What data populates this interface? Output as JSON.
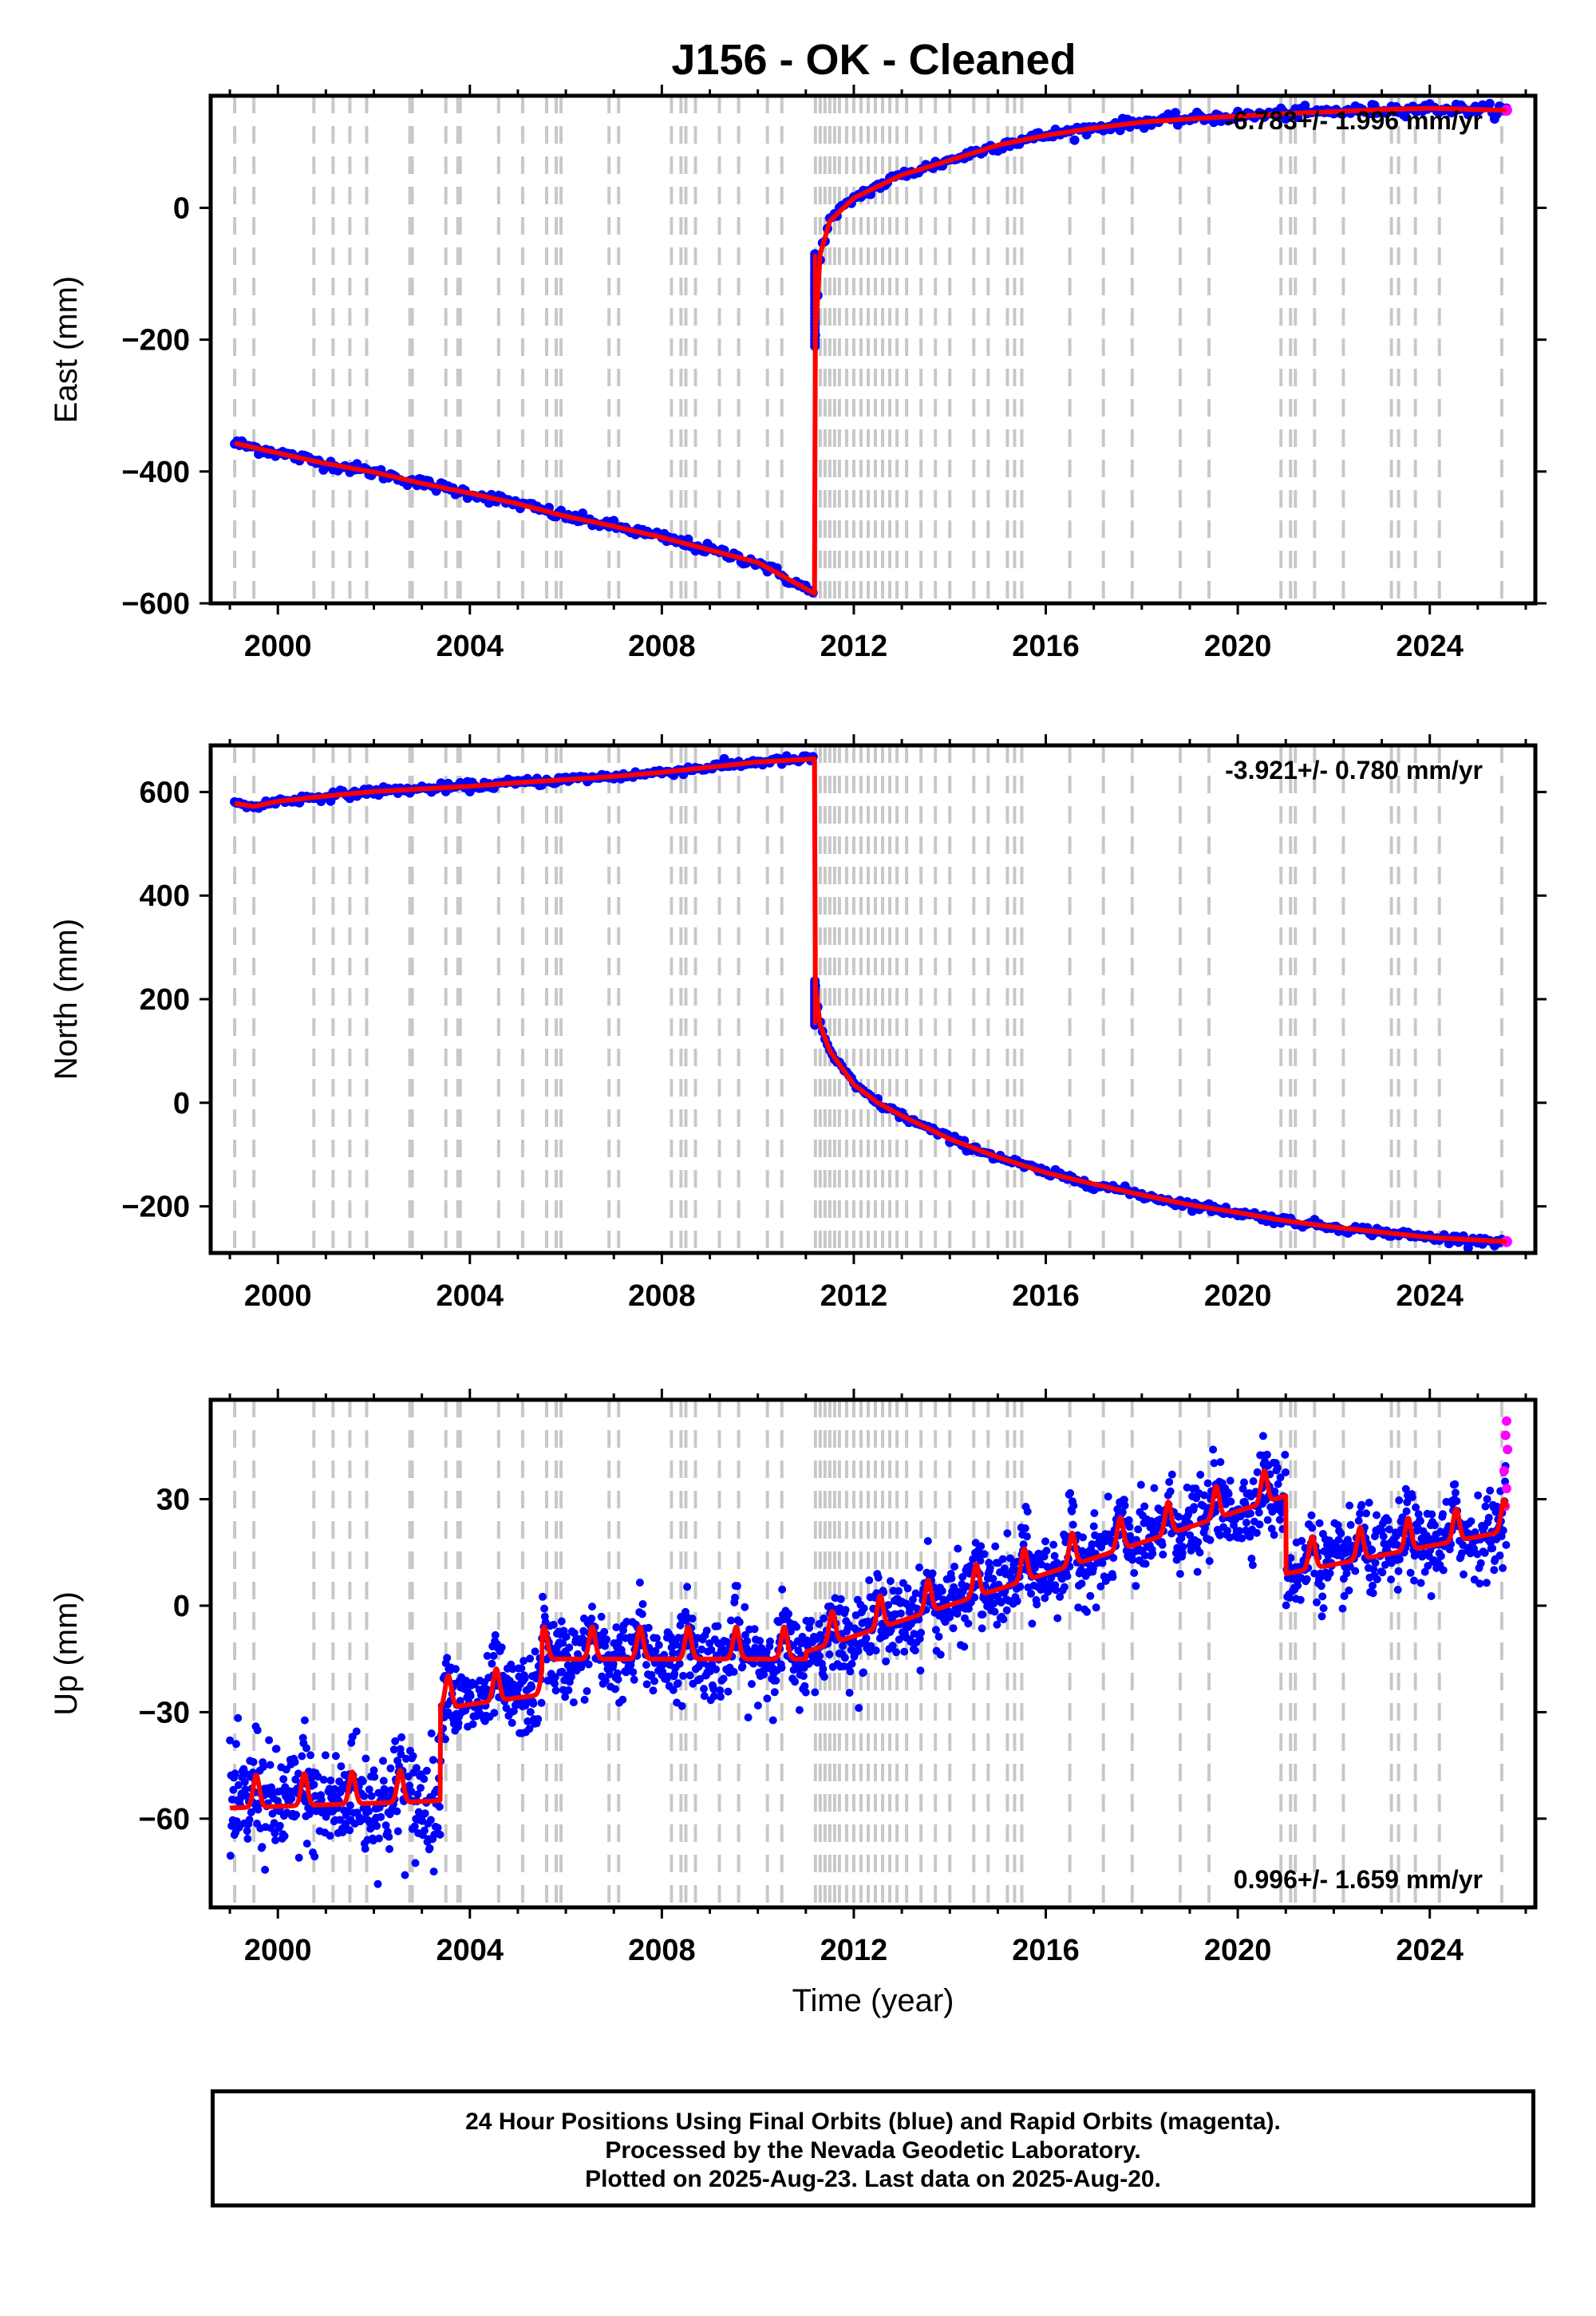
{
  "title": "J156  - OK - Cleaned",
  "caption": {
    "line1": "24 Hour Positions Using Final Orbits (blue) and Rapid Orbits (magenta).",
    "line2": "Processed by the Nevada Geodetic Laboratory.",
    "line3": "Plotted on 2025-Aug-23. Last data on 2025-Aug-20."
  },
  "colors": {
    "final_orbits": "#0000ff",
    "rapid_orbits": "#ff00ff",
    "model": "#ff0000",
    "steps": "#c8c8c8"
  },
  "chart_data": [
    {
      "type": "scatter",
      "ylabel": "East (mm)",
      "xlim": [
        1998.6,
        2026.2
      ],
      "ylim": [
        -600,
        170
      ],
      "xticks": [
        2000,
        2004,
        2008,
        2012,
        2016,
        2020,
        2024
      ],
      "yticks": [
        0,
        -200,
        -400,
        -600
      ],
      "ytick_labels": [
        "0",
        "−200",
        "−400",
        "−600"
      ],
      "rate_label": "-6.783+/- 1.996 mm/yr",
      "model_x": [
        1999.1,
        2000,
        2001,
        2002,
        2003,
        2004,
        2005,
        2006,
        2007,
        2008,
        2009,
        2010,
        2011.18,
        2011.19,
        2011.3,
        2011.5,
        2012,
        2013,
        2014,
        2015,
        2016,
        2017,
        2018,
        2019,
        2020,
        2021,
        2022,
        2023,
        2024,
        2025.6
      ],
      "model_y": [
        -357,
        -372,
        -388,
        -401,
        -418,
        -433,
        -449,
        -468,
        -483,
        -500,
        -519,
        -538,
        -585,
        -210,
        -70,
        -20,
        15,
        50,
        72,
        95,
        110,
        121,
        130,
        135,
        139,
        143,
        146,
        149,
        151,
        148
      ],
      "step_x": [
        1999.1,
        1999.5,
        2000.75,
        2001.15,
        2001.5,
        2001.85,
        2002.75,
        2002.8,
        2003.5,
        2003.75,
        2003.8,
        2004.6,
        2005.1,
        2005.6,
        2005.8,
        2005.9,
        2006.9,
        2007.1,
        2008.2,
        2008.4,
        2008.5,
        2008.7,
        2009.2,
        2009.6,
        2010.2,
        2010.5,
        2011.2,
        2011.3,
        2011.4,
        2011.5,
        2011.6,
        2011.7,
        2011.85,
        2012.0,
        2012.15,
        2012.3,
        2012.45,
        2012.6,
        2012.75,
        2012.9,
        2013.1,
        2013.4,
        2013.7,
        2014.0,
        2014.5,
        2014.8,
        2015.2,
        2015.35,
        2015.5,
        2016.5,
        2017.2,
        2017.8,
        2018.8,
        2019.4,
        2020.9,
        2021.1,
        2021.2,
        2021.6,
        2022.2,
        2023.2,
        2023.35,
        2023.7,
        2024.2,
        2025.5
      ]
    },
    {
      "type": "scatter",
      "ylabel": "North (mm)",
      "xlim": [
        1998.6,
        2026.2
      ],
      "ylim": [
        -290,
        690
      ],
      "xticks": [
        2000,
        2004,
        2008,
        2012,
        2016,
        2020,
        2024
      ],
      "yticks": [
        600,
        400,
        200,
        0,
        -200
      ],
      "ytick_labels": [
        "600",
        "400",
        "200",
        "0",
        "−200"
      ],
      "rate_label": "-3.921+/- 0.780 mm/yr",
      "model_x": [
        1999.1,
        1999.5,
        2000,
        2001,
        2002,
        2003,
        2004,
        2005,
        2006,
        2007,
        2008,
        2009,
        2010,
        2011.18,
        2011.19,
        2011.3,
        2011.5,
        2012,
        2012.5,
        2013,
        2014,
        2015,
        2016,
        2017,
        2018,
        2019,
        2020,
        2021,
        2022,
        2023,
        2024,
        2025.6
      ],
      "model_y": [
        578,
        572,
        582,
        592,
        601,
        606,
        611,
        618,
        624,
        630,
        638,
        648,
        658,
        664,
        235,
        150,
        100,
        35,
        0,
        -25,
        -70,
        -105,
        -135,
        -157,
        -178,
        -197,
        -212,
        -228,
        -240,
        -250,
        -260,
        -268
      ]
    },
    {
      "type": "scatter",
      "ylabel": "Up (mm)",
      "xlabel": "Time (year)",
      "xlim": [
        1998.6,
        2026.2
      ],
      "ylim": [
        -85,
        58
      ],
      "xticks": [
        2000,
        2004,
        2008,
        2012,
        2016,
        2020,
        2024
      ],
      "yticks": [
        30,
        0,
        -30,
        -60
      ],
      "ytick_labels": [
        "30",
        "0",
        "−30",
        "−60"
      ],
      "rate_label": "0.996+/- 1.659 mm/yr",
      "model_trend": [
        {
          "x0": 1999.0,
          "x1": 2003.38,
          "y0": -54,
          "y1": -52
        },
        {
          "x0": 2003.38,
          "x1": 2005.5,
          "y0": -26,
          "y1": -22
        },
        {
          "x0": 2005.5,
          "x1": 2011.0,
          "y0": -12,
          "y1": -12
        },
        {
          "x0": 2011.0,
          "x1": 2021.0,
          "y0": -10,
          "y1": 34
        },
        {
          "x0": 2021.0,
          "x1": 2025.6,
          "y0": 12,
          "y1": 24
        }
      ],
      "seasonal_amplitude_mm": 9,
      "rapid_points": [
        [
          2025.55,
          38
        ],
        [
          2025.58,
          48
        ],
        [
          2025.6,
          52
        ],
        [
          2025.62,
          44
        ],
        [
          2025.6,
          33
        ],
        [
          2025.57,
          28
        ]
      ]
    }
  ]
}
